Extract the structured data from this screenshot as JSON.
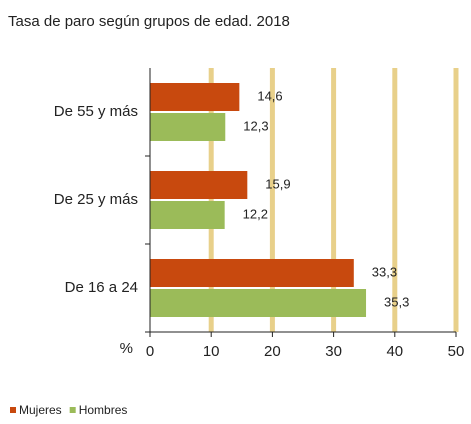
{
  "chart_data": {
    "type": "hbar",
    "title": "Tasa de paro según grupos de edad. 2018",
    "categories": [
      "De 55 y más",
      "De 25 y más",
      "De 16 a 24"
    ],
    "series": [
      {
        "name": "Mujeres",
        "color": "#c8490e",
        "values": [
          14.6,
          15.9,
          33.3
        ],
        "value_labels": [
          "14,6",
          "15,9",
          "33,3"
        ]
      },
      {
        "name": "Hombres",
        "color": "#9bbb59",
        "values": [
          12.3,
          12.2,
          35.3
        ],
        "value_labels": [
          "12,3",
          "12,2",
          "35,3"
        ]
      }
    ],
    "x_label": "%",
    "xlim": [
      0,
      50
    ],
    "xticks": [
      0,
      10,
      20,
      30,
      40,
      50
    ],
    "grid": true,
    "grid_color": "#e8d08a",
    "legend": "bottom-left"
  }
}
